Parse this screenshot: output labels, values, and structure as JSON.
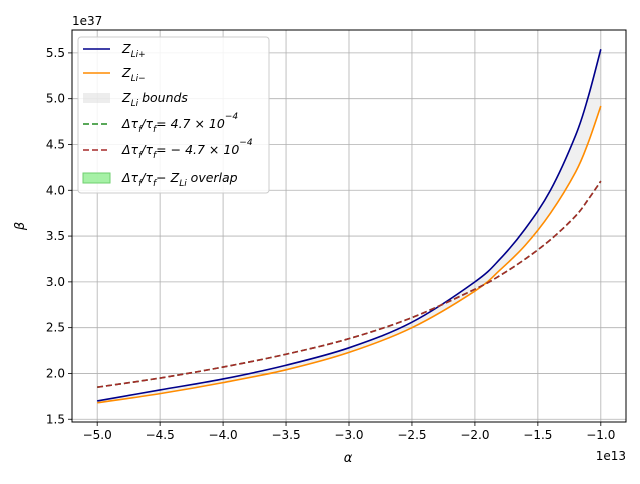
{
  "chart_data": {
    "type": "line",
    "xlabel": "α",
    "ylabel": "β",
    "x_offset_label": "1e13",
    "y_offset_label": "1e37",
    "xlim": [
      -5.2,
      -0.8
    ],
    "ylim": [
      1.47,
      5.75
    ],
    "xticks": [
      -5.0,
      -4.5,
      -4.0,
      -3.5,
      -3.0,
      -2.5,
      -2.0,
      -1.5,
      -1.0
    ],
    "xtick_labels": [
      "−5.0",
      "−4.5",
      "−4.0",
      "−3.5",
      "−3.0",
      "−2.5",
      "−2.0",
      "−1.5",
      "−1.0"
    ],
    "yticks": [
      1.5,
      2.0,
      2.5,
      3.0,
      3.5,
      4.0,
      4.5,
      5.0,
      5.5
    ],
    "ytick_labels": [
      "1.5",
      "2.0",
      "2.5",
      "3.0",
      "3.5",
      "4.0",
      "4.5",
      "5.0",
      "5.5"
    ],
    "grid": true,
    "legend_position": "top-left",
    "x": [
      -5.0,
      -4.5,
      -4.0,
      -3.5,
      -3.0,
      -2.5,
      -2.0,
      -1.8,
      -1.6,
      -1.4,
      -1.2,
      -1.1,
      -1.0
    ],
    "series": [
      {
        "key": "zli_plus",
        "values": [
          1.7,
          1.82,
          1.94,
          2.09,
          2.28,
          2.56,
          3.0,
          3.25,
          3.58,
          4.0,
          4.6,
          5.02,
          5.54
        ],
        "color": "#00008b",
        "dash": "solid"
      },
      {
        "key": "zli_minus",
        "values": [
          1.68,
          1.78,
          1.9,
          2.04,
          2.23,
          2.5,
          2.9,
          3.13,
          3.4,
          3.75,
          4.2,
          4.52,
          4.92
        ],
        "color": "#ff8c00",
        "dash": "solid"
      },
      {
        "key": "dtau_pos",
        "values": [
          1.85,
          1.95,
          2.07,
          2.21,
          2.38,
          2.61,
          2.92,
          3.07,
          3.25,
          3.46,
          3.72,
          3.9,
          4.1
        ],
        "color": "#228b22",
        "dash": "dashed"
      },
      {
        "key": "dtau_neg",
        "values": [
          1.85,
          1.95,
          2.07,
          2.21,
          2.38,
          2.61,
          2.92,
          3.07,
          3.25,
          3.46,
          3.72,
          3.9,
          4.1
        ],
        "color": "#a52a2a",
        "dash": "dashed"
      }
    ],
    "bounds_fill_color": "#d3d3d3",
    "overlap_fill_color": "#90ee90",
    "legend": [
      {
        "key": "zli_plus",
        "main": "Z",
        "sub": "Li+",
        "rest": ""
      },
      {
        "key": "zli_minus",
        "main": "Z",
        "sub": "Li−",
        "rest": ""
      },
      {
        "key": "bounds",
        "main": "Z",
        "sub": "Li",
        "rest": " bounds"
      },
      {
        "key": "dtau_pos",
        "main": "Δτ",
        "sub": "f",
        "rest": "/τ",
        "sub2": "f",
        "rest2": "= 4.7 × 10",
        "sup": "−4"
      },
      {
        "key": "dtau_neg",
        "main": "Δτ",
        "sub": "f",
        "rest": "/τ",
        "sub2": "f",
        "rest2": "= − 4.7 × 10",
        "sup": "−4"
      },
      {
        "key": "overlap",
        "main": "Δτ",
        "sub": "f",
        "rest": "/τ",
        "sub2": "f",
        "rest2": "− Z",
        "sub3": "Li",
        "rest3": " overlap"
      }
    ]
  }
}
